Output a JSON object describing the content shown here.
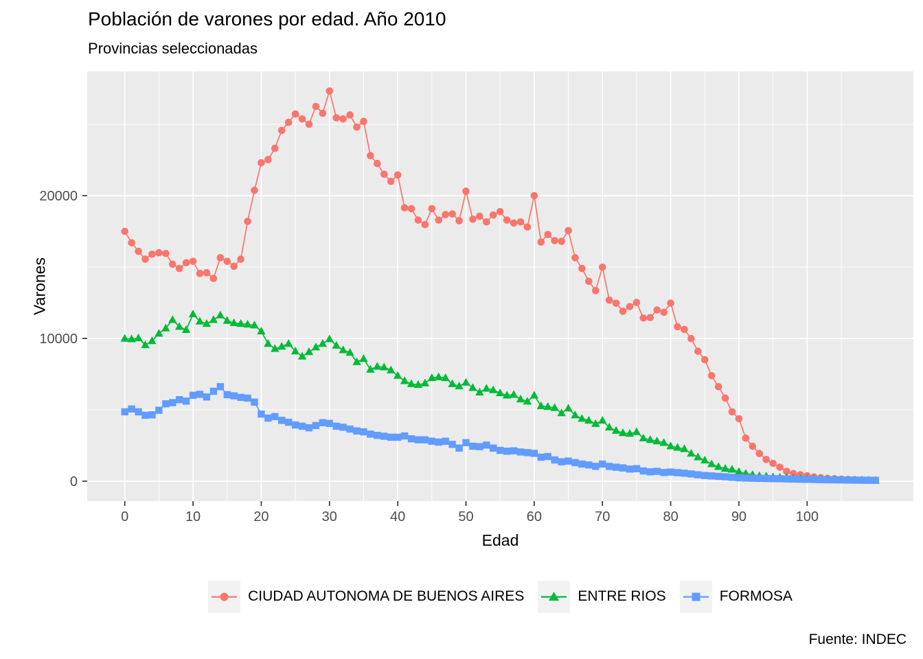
{
  "header": {
    "title": "Población de varones por edad. Año 2010",
    "subtitle": "Provincias seleccionadas",
    "caption": "Fuente: INDEC"
  },
  "legend": {
    "items": [
      {
        "label": "CIUDAD AUTONOMA DE BUENOS AIRES",
        "color": "#F8766D",
        "shape": "circle"
      },
      {
        "label": "ENTRE RIOS",
        "color": "#00BA38",
        "shape": "triangle"
      },
      {
        "label": "FORMOSA",
        "color": "#619CFF",
        "shape": "square"
      }
    ],
    "position": "bottom"
  },
  "chart_data": {
    "type": "line",
    "title": "Población de varones por edad. Año 2010",
    "subtitle": "Provincias seleccionadas",
    "caption": "Fuente: INDEC",
    "xlabel": "Edad",
    "ylabel": "Varones",
    "x": {
      "min": 0,
      "max": 110,
      "step": 1
    },
    "xlim": [
      -5.5,
      115.5
    ],
    "ylim": [
      -1370,
      28700
    ],
    "grid": "on",
    "panel_color": "#EBEBEB",
    "grid_color": "#FFFFFF",
    "tick_text_color": "#4D4D4D",
    "x_axis": {
      "major_ticks": [
        0,
        10,
        20,
        30,
        40,
        50,
        60,
        70,
        80,
        90,
        100
      ],
      "minor_ticks": [
        5,
        15,
        25,
        35,
        45,
        55,
        65,
        75,
        85,
        95,
        105
      ]
    },
    "y_axis": {
      "major_ticks": [
        0,
        10000,
        20000
      ],
      "major_labels": [
        "0",
        "10000",
        "20000"
      ],
      "minor_ticks": [
        5000,
        15000,
        25000
      ]
    },
    "series": [
      {
        "name": "CIUDAD AUTONOMA DE BUENOS AIRES",
        "color": "#F8766D",
        "marker": "circle",
        "values": [
          17500,
          16700,
          16100,
          15550,
          15900,
          16000,
          15950,
          15200,
          14900,
          15300,
          15400,
          14550,
          14600,
          14200,
          15650,
          15400,
          15050,
          15550,
          18200,
          20370,
          22300,
          22520,
          23320,
          24570,
          25130,
          25720,
          25370,
          25000,
          26250,
          25770,
          27330,
          25450,
          25370,
          25650,
          24800,
          25200,
          22800,
          22250,
          21500,
          21000,
          21450,
          19150,
          19090,
          18290,
          17970,
          19090,
          18290,
          18670,
          18720,
          18240,
          20310,
          18350,
          18560,
          18160,
          18640,
          18880,
          18290,
          18080,
          18160,
          17800,
          20000,
          16750,
          17280,
          16850,
          16800,
          17550,
          15650,
          14900,
          14000,
          13350,
          14990,
          12680,
          12470,
          11900,
          12230,
          12520,
          11430,
          11460,
          11990,
          11830,
          12470,
          10820,
          10630,
          9990,
          9100,
          8510,
          7390,
          6620,
          5820,
          4860,
          4375,
          3015,
          2450,
          1940,
          1520,
          1250,
          980,
          690,
          530,
          450,
          380,
          300,
          250,
          200,
          170,
          140,
          120,
          100,
          80,
          70,
          60
        ]
      },
      {
        "name": "ENTRE RIOS",
        "color": "#00BA38",
        "marker": "triangle",
        "values": [
          9990,
          9950,
          10020,
          9540,
          9820,
          10340,
          10710,
          11300,
          10820,
          10600,
          11700,
          11190,
          11030,
          11300,
          11620,
          11240,
          11080,
          11030,
          10980,
          10920,
          10500,
          9630,
          9270,
          9430,
          9630,
          9100,
          8740,
          9050,
          9380,
          9630,
          9950,
          9500,
          9180,
          9000,
          8350,
          8570,
          7820,
          8030,
          7980,
          7770,
          7390,
          7020,
          6810,
          6750,
          6860,
          7230,
          7290,
          7230,
          6810,
          6650,
          6910,
          6540,
          6220,
          6490,
          6380,
          6170,
          6010,
          6060,
          5740,
          5580,
          6010,
          5260,
          5210,
          5140,
          4770,
          5100,
          4620,
          4380,
          4250,
          4020,
          4250,
          3770,
          3540,
          3380,
          3330,
          3450,
          3010,
          2900,
          2800,
          2690,
          2450,
          2350,
          2260,
          1940,
          1680,
          1460,
          1200,
          1010,
          880,
          820,
          660,
          530,
          450,
          370,
          340,
          290,
          260,
          240,
          210,
          190,
          170,
          150,
          130,
          120,
          100,
          90,
          80,
          70,
          60,
          55,
          50
        ]
      },
      {
        "name": "FORMOSA",
        "color": "#619CFF",
        "marker": "square",
        "values": [
          4860,
          5060,
          4860,
          4620,
          4650,
          4970,
          5420,
          5500,
          5710,
          5610,
          6020,
          6090,
          5900,
          6300,
          6620,
          6060,
          5980,
          5870,
          5820,
          5540,
          4700,
          4420,
          4530,
          4260,
          4130,
          3940,
          3850,
          3740,
          3900,
          4100,
          4050,
          3850,
          3780,
          3650,
          3520,
          3460,
          3300,
          3210,
          3150,
          3080,
          3080,
          3170,
          2970,
          2900,
          2900,
          2800,
          2740,
          2800,
          2580,
          2320,
          2700,
          2450,
          2420,
          2530,
          2320,
          2160,
          2100,
          2130,
          2050,
          2000,
          1950,
          1680,
          1730,
          1490,
          1360,
          1410,
          1300,
          1200,
          1140,
          1040,
          1200,
          1040,
          980,
          930,
          850,
          880,
          720,
          660,
          690,
          610,
          640,
          600,
          560,
          510,
          450,
          400,
          370,
          340,
          310,
          270,
          240,
          220,
          210,
          200,
          190,
          180,
          170,
          160,
          150,
          140,
          130,
          120,
          110,
          100,
          95,
          90,
          80,
          75,
          70,
          65,
          60
        ]
      }
    ]
  }
}
